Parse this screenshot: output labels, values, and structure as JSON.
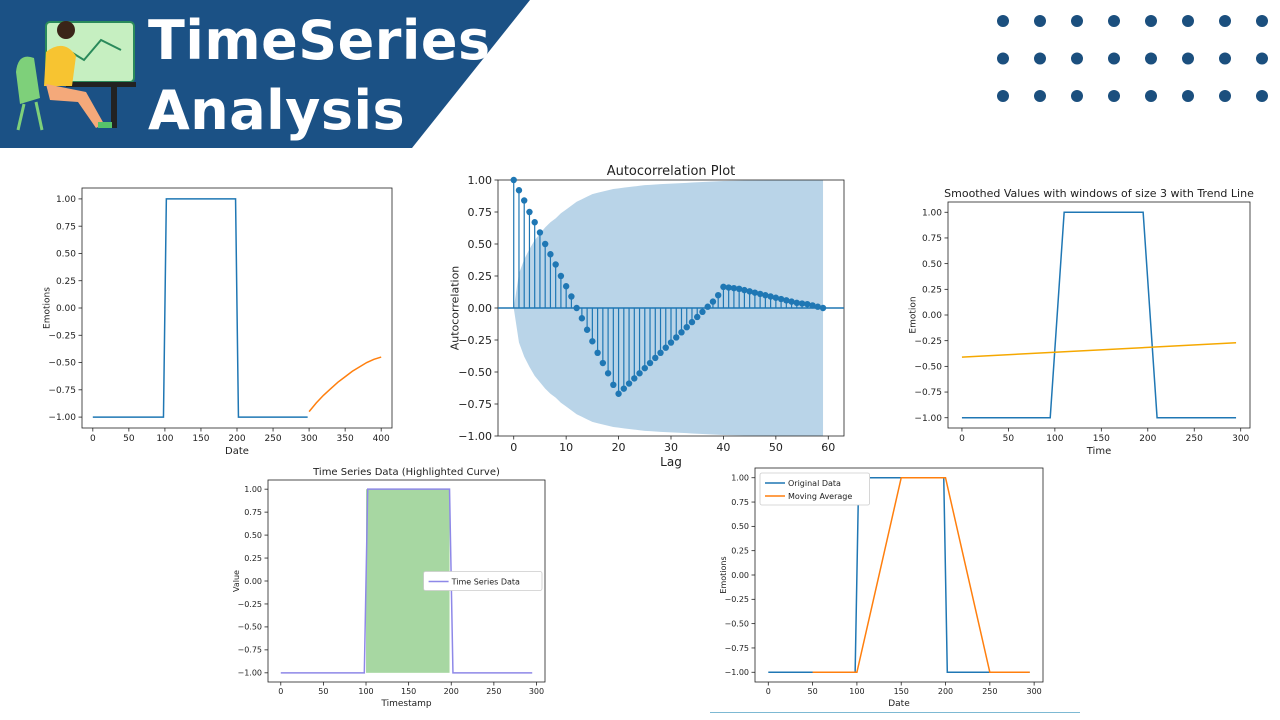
{
  "banner": {
    "title_line1": "TimeSeries",
    "title_line2": "Analysis",
    "colors": {
      "background": "#1b5185",
      "text": "#ffffff",
      "dots": "#1b4f7e"
    }
  },
  "chart_data": [
    {
      "id": "c1",
      "type": "line",
      "title": "",
      "xlabel": "Date",
      "ylabel": "Emotions",
      "xlim": [
        -15,
        415
      ],
      "ylim": [
        -1.1,
        1.1
      ],
      "xticks": [
        0,
        50,
        100,
        150,
        200,
        250,
        300,
        350,
        400
      ],
      "yticks": [
        1.0,
        0.75,
        0.5,
        0.25,
        0.0,
        -0.25,
        -0.5,
        -0.75,
        -1.0
      ],
      "series": [
        {
          "color": "#1f77b4",
          "x": [
            0,
            98,
            102,
            198,
            202,
            298
          ],
          "y": [
            -1,
            -1,
            1,
            1,
            -1,
            -1
          ]
        },
        {
          "color": "#ff7f0e",
          "x": [
            300,
            310,
            320,
            330,
            340,
            350,
            360,
            370,
            380,
            390,
            400
          ],
          "y": [
            -0.95,
            -0.87,
            -0.8,
            -0.74,
            -0.68,
            -0.63,
            -0.58,
            -0.54,
            -0.5,
            -0.47,
            -0.45
          ]
        }
      ]
    },
    {
      "id": "c2",
      "type": "stem",
      "title": "Autocorrelation Plot",
      "xlabel": "Lag",
      "ylabel": "Autocorrelation",
      "xlim": [
        -3,
        63
      ],
      "ylim": [
        -1.0,
        1.0
      ],
      "xticks": [
        0,
        10,
        20,
        30,
        40,
        50,
        60
      ],
      "yticks": [
        1.0,
        0.75,
        0.5,
        0.25,
        0.0,
        -0.25,
        -0.5,
        -0.75,
        -1.0
      ],
      "color": "#1f77b4",
      "band_color": "#adcde4",
      "confidence_band": [
        0.0,
        0.27,
        0.38,
        0.46,
        0.53,
        0.58,
        0.63,
        0.67,
        0.7,
        0.74,
        0.77,
        0.8,
        0.83,
        0.85,
        0.87,
        0.89,
        0.9,
        0.91,
        0.92,
        0.93,
        0.935,
        0.94,
        0.945,
        0.95,
        0.955,
        0.96,
        0.962,
        0.965,
        0.968,
        0.97,
        0.972,
        0.974,
        0.976,
        0.978,
        0.98,
        0.982,
        0.984,
        0.986,
        0.988,
        0.99,
        0.992,
        0.993,
        0.994,
        0.995,
        0.996,
        0.997,
        0.998,
        0.999,
        1.0,
        1.0,
        1.0,
        1.0,
        1.0,
        1.0,
        1.0,
        1.0,
        1.0,
        1.0,
        1.0,
        1.0
      ],
      "values": [
        1.0,
        0.92,
        0.84,
        0.75,
        0.67,
        0.59,
        0.5,
        0.42,
        0.34,
        0.25,
        0.17,
        0.09,
        0.0,
        -0.08,
        -0.17,
        -0.26,
        -0.35,
        -0.43,
        -0.51,
        -0.6,
        -0.67,
        -0.63,
        -0.59,
        -0.55,
        -0.51,
        -0.47,
        -0.43,
        -0.39,
        -0.35,
        -0.31,
        -0.27,
        -0.23,
        -0.19,
        -0.15,
        -0.11,
        -0.07,
        -0.03,
        0.01,
        0.05,
        0.1,
        0.165,
        0.16,
        0.155,
        0.15,
        0.14,
        0.13,
        0.12,
        0.11,
        0.1,
        0.09,
        0.08,
        0.07,
        0.06,
        0.05,
        0.04,
        0.035,
        0.03,
        0.02,
        0.01,
        0.0
      ]
    },
    {
      "id": "c3",
      "type": "line",
      "title": "Smoothed Values with windows of size 3 with Trend Line",
      "xlabel": "Time",
      "ylabel": "Emotion",
      "xlim": [
        -15,
        310
      ],
      "ylim": [
        -1.1,
        1.1
      ],
      "xticks": [
        0,
        50,
        100,
        150,
        200,
        250,
        300
      ],
      "yticks": [
        1.0,
        0.75,
        0.5,
        0.25,
        0.0,
        -0.25,
        -0.5,
        -0.75,
        -1.0
      ],
      "series": [
        {
          "color": "#1f77b4",
          "x": [
            0,
            95,
            110,
            195,
            210,
            295
          ],
          "y": [
            -1,
            -1,
            1,
            1,
            -1,
            -1
          ]
        },
        {
          "color": "#f5a800",
          "x": [
            0,
            295
          ],
          "y": [
            -0.41,
            -0.27
          ]
        }
      ]
    },
    {
      "id": "c4",
      "type": "line",
      "title": "Time Series Data (Highlighted Curve)",
      "xlabel": "Timestamp",
      "ylabel": "Value",
      "xlim": [
        -15,
        310
      ],
      "ylim": [
        -1.1,
        1.1
      ],
      "xticks": [
        0,
        50,
        100,
        150,
        200,
        250,
        300
      ],
      "yticks": [
        1.0,
        0.75,
        0.5,
        0.25,
        0.0,
        -0.25,
        -0.5,
        -0.75,
        -1.0
      ],
      "series": [
        {
          "name": "Time Series Data",
          "color": "#8e88e8",
          "x": [
            0,
            98,
            102,
            198,
            202,
            295
          ],
          "y": [
            -1,
            -1,
            1,
            1,
            -1,
            -1
          ]
        }
      ],
      "fill": {
        "color": "#a7d7a2",
        "x0": 100,
        "x1": 198
      },
      "legend": "center-right"
    },
    {
      "id": "c5",
      "type": "line",
      "title": "",
      "xlabel": "Date",
      "ylabel": "Emotions",
      "xlim": [
        -15,
        310
      ],
      "ylim": [
        -1.1,
        1.1
      ],
      "xticks": [
        0,
        50,
        100,
        150,
        200,
        250,
        300
      ],
      "yticks": [
        1.0,
        0.75,
        0.5,
        0.25,
        0.0,
        -0.25,
        -0.5,
        -0.75,
        -1.0
      ],
      "series": [
        {
          "name": "Original Data",
          "color": "#1f77b4",
          "x": [
            0,
            98,
            102,
            198,
            202,
            295
          ],
          "y": [
            -1,
            -1,
            1,
            1,
            -1,
            -1
          ]
        },
        {
          "name": "Moving Average",
          "color": "#ff7f0e",
          "x": [
            50,
            100,
            150,
            200,
            250,
            295
          ],
          "y": [
            -1,
            -1,
            1,
            1,
            -1,
            -1
          ]
        }
      ],
      "legend": "top-left"
    }
  ]
}
